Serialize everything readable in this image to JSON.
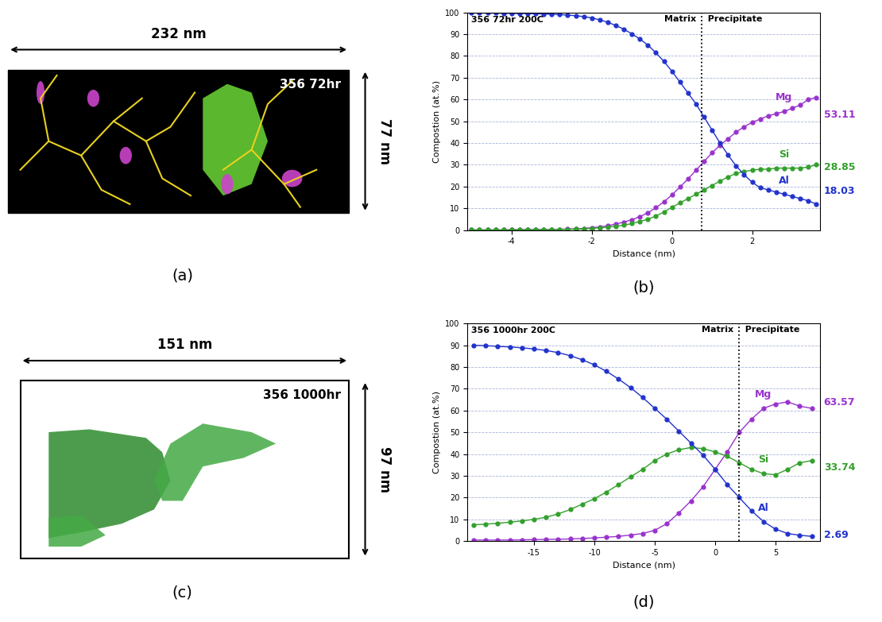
{
  "images": [
    {
      "label": "(a)",
      "title": "356 72hr",
      "width_label": "232 nm",
      "height_label": "77 nm"
    },
    {
      "label": "(c)",
      "title": "356 1000hr",
      "width_label": "151 nm",
      "height_label": "97 nm"
    }
  ],
  "chart_data": [
    {
      "type": "line",
      "label": "(b)",
      "title": "356 72hr 200C",
      "x_label": "Distance (nm)",
      "y_label": "Compostion (at.%)",
      "xlim": [
        -5.1,
        3.7
      ],
      "xticks": [
        -4,
        -2,
        0,
        2
      ],
      "ylim": [
        0,
        100
      ],
      "yticks": [
        0,
        10,
        20,
        30,
        40,
        50,
        60,
        70,
        80,
        90,
        100
      ],
      "grid": true,
      "marker": "o",
      "interface": 0.75,
      "left_region": "Matrix",
      "right_region": "Precipitate",
      "x": [
        -5.0,
        -4.8,
        -4.6,
        -4.4,
        -4.2,
        -4.0,
        -3.8,
        -3.6,
        -3.4,
        -3.2,
        -3.0,
        -2.8,
        -2.6,
        -2.4,
        -2.2,
        -2.0,
        -1.8,
        -1.6,
        -1.4,
        -1.2,
        -1.0,
        -0.8,
        -0.6,
        -0.4,
        -0.2,
        0.0,
        0.2,
        0.4,
        0.6,
        0.8,
        1.0,
        1.2,
        1.4,
        1.6,
        1.8,
        2.0,
        2.2,
        2.4,
        2.6,
        2.8,
        3.0,
        3.2,
        3.4,
        3.6
      ],
      "series": [
        {
          "name": "Mg",
          "color": "#9933cc",
          "end_value": 53.11,
          "values": [
            0.1,
            0.1,
            0.1,
            0.1,
            0.1,
            0.2,
            0.2,
            0.2,
            0.2,
            0.3,
            0.3,
            0.4,
            0.5,
            0.6,
            0.8,
            1.1,
            1.5,
            2.0,
            2.8,
            3.7,
            4.8,
            6.2,
            8.0,
            10.3,
            13.0,
            16.2,
            19.8,
            23.5,
            27.5,
            31.5,
            35.5,
            39.0,
            42.0,
            45.0,
            47.5,
            49.5,
            51.0,
            52.5,
            53.5,
            54.5,
            56.0,
            57.5,
            60.0,
            61.0
          ]
        },
        {
          "name": "Si",
          "color": "#33a02c",
          "end_value": 28.85,
          "values": [
            0.1,
            0.1,
            0.1,
            0.1,
            0.1,
            0.1,
            0.2,
            0.2,
            0.2,
            0.3,
            0.3,
            0.3,
            0.4,
            0.5,
            0.6,
            0.8,
            1.1,
            1.4,
            1.8,
            2.3,
            3.0,
            4.0,
            5.0,
            6.5,
            8.3,
            10.5,
            12.5,
            14.5,
            16.5,
            18.5,
            20.5,
            22.5,
            24.5,
            26.0,
            27.0,
            27.5,
            28.0,
            28.0,
            28.5,
            28.5,
            28.5,
            28.5,
            29.0,
            30.0
          ]
        },
        {
          "name": "Al",
          "color": "#2233cc",
          "end_value": 18.03,
          "values": [
            99.8,
            99.8,
            99.7,
            99.7,
            99.6,
            99.6,
            99.5,
            99.5,
            99.4,
            99.3,
            99.2,
            99.0,
            98.8,
            98.5,
            98.1,
            97.5,
            96.6,
            95.5,
            94.0,
            92.3,
            90.2,
            87.8,
            85.0,
            81.5,
            77.5,
            73.0,
            68.0,
            63.0,
            58.0,
            52.0,
            46.0,
            40.0,
            34.5,
            29.5,
            25.5,
            22.0,
            19.5,
            18.5,
            17.5,
            16.5,
            15.5,
            14.5,
            13.5,
            12.0
          ]
        }
      ]
    },
    {
      "type": "line",
      "label": "(d)",
      "title": "356 1000hr 200C",
      "x_label": "Distance (nm)",
      "y_label": "Compostion (at.%)",
      "xlim": [
        -20.5,
        8.7
      ],
      "xticks": [
        -15,
        -10,
        -5,
        0,
        5
      ],
      "ylim": [
        0,
        100
      ],
      "yticks": [
        0,
        10,
        20,
        30,
        40,
        50,
        60,
        70,
        80,
        90,
        100
      ],
      "grid": true,
      "marker": "o",
      "interface": 2,
      "left_region": "Matrix",
      "right_region": "Precipitate",
      "x": [
        -20,
        -19,
        -18,
        -17,
        -16,
        -15,
        -14,
        -13,
        -12,
        -11,
        -10,
        -9,
        -8,
        -7,
        -6,
        -5,
        -4,
        -3,
        -2,
        -1,
        0,
        1,
        2,
        3,
        4,
        5,
        6,
        7,
        8
      ],
      "series": [
        {
          "name": "Mg",
          "color": "#9933cc",
          "end_value": 63.57,
          "values": [
            0.5,
            0.5,
            0.5,
            0.5,
            0.6,
            0.7,
            0.8,
            0.9,
            1,
            1.2,
            1.5,
            1.8,
            2.2,
            2.8,
            3.5,
            5,
            8,
            13,
            18.5,
            25,
            33,
            41,
            50,
            56,
            61,
            63,
            64,
            62,
            61
          ]
        },
        {
          "name": "Si",
          "color": "#33a02c",
          "end_value": 33.74,
          "values": [
            7.5,
            7.8,
            8.2,
            8.7,
            9.3,
            10,
            11,
            12.5,
            14.5,
            17,
            19.5,
            22.5,
            26,
            29.5,
            33,
            37,
            40,
            42,
            43,
            42.5,
            41,
            39,
            36,
            33,
            31,
            30.5,
            33,
            36,
            37
          ]
        },
        {
          "name": "Al",
          "color": "#2233cc",
          "end_value": 2.69,
          "values": [
            90,
            89.8,
            89.5,
            89.2,
            88.8,
            88.3,
            87.6,
            86.6,
            85.2,
            83.3,
            81,
            78,
            74.5,
            70.5,
            66,
            61,
            56,
            50.5,
            45,
            39.5,
            33,
            26,
            20,
            14,
            9,
            5.5,
            3.5,
            2.7,
            2.2
          ]
        }
      ]
    }
  ]
}
